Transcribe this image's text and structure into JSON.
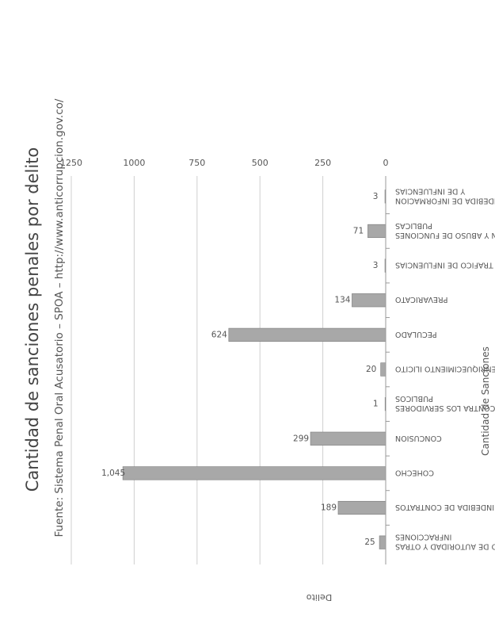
{
  "chart_data": {
    "type": "bar",
    "title": "Cantidad de sanciones penales por delito",
    "subtitle": "Fuente: Sistema Penal Oral Acusatorio – SPOA – http://www.anticorrupcion.gov.co/",
    "xlabel": "Delito",
    "ylabel": "Cantidad de Sanciones",
    "ylim": [
      0,
      1250
    ],
    "yticks": [
      "0",
      "250",
      "500",
      "750",
      "1000",
      "1250"
    ],
    "grid": true,
    "orientation": "rotated",
    "categories": [
      [
        "ABUSO DE AUTORIDAD Y OTRAS",
        "INFRACCIONES"
      ],
      [
        "CELEBRACION INDEBIDA DE CONTRATOS"
      ],
      [
        "COHECHO"
      ],
      [
        "CONCUSION"
      ],
      [
        "DELITOS CONTRA LOS SERVIDORES",
        "PUBLICOS"
      ],
      [
        "ENRIQUECIMIENTO ILICITO"
      ],
      [
        "PECULADO"
      ],
      [
        "PREVARICATO"
      ],
      [
        "TRAFICO DE INFLUENCIAS"
      ],
      [
        "USURPACION Y ABUSO DE FUNCIONES",
        "PUBLICAS"
      ],
      [
        "UTILIZACION INDEBIDA DE INFORMACION",
        "Y DE INFLUENCIAS"
      ]
    ],
    "values": [
      25,
      189,
      1045,
      299,
      1,
      20,
      624,
      134,
      3,
      71,
      3
    ],
    "data_labels": [
      "25",
      "189",
      "1,045",
      "299",
      "1",
      "20",
      "624",
      "134",
      "3",
      "71",
      "3"
    ],
    "colors": {
      "bar_fill": "#a8a8a8",
      "bar_stroke": "#7a7a7a",
      "grid": "#cfcfcf",
      "text": "#555555",
      "title": "#444444"
    }
  }
}
